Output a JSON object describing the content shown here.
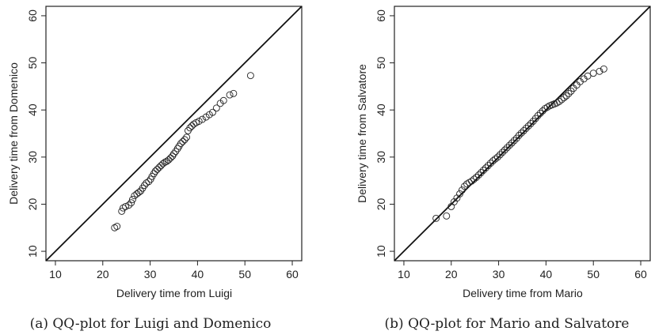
{
  "chart_data": [
    {
      "type": "scatter",
      "caption": "(a) QQ-plot for Luigi and Domenico",
      "xlabel": "Delivery time from Luigi",
      "ylabel": "Delivery time from Domenico",
      "xlim": [
        8,
        62
      ],
      "ylim": [
        8,
        62
      ],
      "xticks": [
        10,
        20,
        30,
        40,
        50,
        60
      ],
      "yticks": [
        10,
        20,
        30,
        40,
        50,
        60
      ],
      "reference_line": "y = x",
      "series": [
        {
          "marker": "open-circle",
          "points": [
            [
              22.5,
              15.0
            ],
            [
              23.0,
              15.3
            ],
            [
              24.0,
              18.5
            ],
            [
              24.3,
              19.2
            ],
            [
              24.8,
              19.5
            ],
            [
              25.5,
              19.8
            ],
            [
              26.0,
              20.3
            ],
            [
              26.3,
              21.0
            ],
            [
              26.7,
              21.8
            ],
            [
              27.2,
              22.2
            ],
            [
              27.6,
              22.5
            ],
            [
              28.0,
              22.8
            ],
            [
              28.4,
              23.4
            ],
            [
              28.8,
              24.0
            ],
            [
              29.2,
              24.5
            ],
            [
              29.7,
              24.8
            ],
            [
              30.1,
              25.3
            ],
            [
              30.4,
              25.9
            ],
            [
              30.8,
              26.5
            ],
            [
              31.1,
              27.0
            ],
            [
              31.5,
              27.4
            ],
            [
              31.9,
              27.8
            ],
            [
              32.3,
              28.2
            ],
            [
              32.7,
              28.6
            ],
            [
              33.1,
              28.9
            ],
            [
              33.5,
              29.1
            ],
            [
              33.9,
              29.4
            ],
            [
              34.3,
              29.8
            ],
            [
              34.7,
              30.2
            ],
            [
              35.0,
              30.7
            ],
            [
              35.4,
              31.2
            ],
            [
              35.8,
              31.8
            ],
            [
              36.1,
              32.3
            ],
            [
              36.5,
              32.9
            ],
            [
              36.9,
              33.3
            ],
            [
              37.3,
              33.7
            ],
            [
              37.7,
              34.2
            ],
            [
              38.0,
              35.6
            ],
            [
              38.4,
              36.2
            ],
            [
              38.8,
              36.6
            ],
            [
              39.2,
              37.0
            ],
            [
              39.7,
              37.3
            ],
            [
              40.3,
              37.6
            ],
            [
              41.0,
              38.0
            ],
            [
              41.8,
              38.5
            ],
            [
              42.5,
              39.0
            ],
            [
              43.2,
              39.5
            ],
            [
              44.0,
              40.4
            ],
            [
              44.8,
              41.4
            ],
            [
              45.5,
              42.0
            ],
            [
              46.8,
              43.2
            ],
            [
              47.6,
              43.5
            ],
            [
              51.2,
              47.3
            ]
          ]
        }
      ]
    },
    {
      "type": "scatter",
      "caption": "(b) QQ-plot for Mario and Salvatore",
      "xlabel": "Delivery time from Mario",
      "ylabel": "Delivery time from Salvatore",
      "xlim": [
        8,
        62
      ],
      "ylim": [
        8,
        62
      ],
      "xticks": [
        10,
        20,
        30,
        40,
        50,
        60
      ],
      "yticks": [
        10,
        20,
        30,
        40,
        50,
        60
      ],
      "reference_line": "y = x",
      "series": [
        {
          "marker": "open-circle",
          "points": [
            [
              16.8,
              17.0
            ],
            [
              19.0,
              17.5
            ],
            [
              20.0,
              19.5
            ],
            [
              20.6,
              20.5
            ],
            [
              21.2,
              21.3
            ],
            [
              21.8,
              22.2
            ],
            [
              22.3,
              23.0
            ],
            [
              22.8,
              23.8
            ],
            [
              23.3,
              24.3
            ],
            [
              23.8,
              24.6
            ],
            [
              24.3,
              24.9
            ],
            [
              24.8,
              25.3
            ],
            [
              25.3,
              25.7
            ],
            [
              25.8,
              26.2
            ],
            [
              26.3,
              26.7
            ],
            [
              26.8,
              27.2
            ],
            [
              27.3,
              27.7
            ],
            [
              27.8,
              28.2
            ],
            [
              28.3,
              28.7
            ],
            [
              28.8,
              29.2
            ],
            [
              29.3,
              29.6
            ],
            [
              29.8,
              30.0
            ],
            [
              30.3,
              30.5
            ],
            [
              30.8,
              31.0
            ],
            [
              31.3,
              31.5
            ],
            [
              31.8,
              32.0
            ],
            [
              32.3,
              32.5
            ],
            [
              32.8,
              33.0
            ],
            [
              33.3,
              33.5
            ],
            [
              33.8,
              34.0
            ],
            [
              34.3,
              34.6
            ],
            [
              34.8,
              35.1
            ],
            [
              35.3,
              35.6
            ],
            [
              35.8,
              36.1
            ],
            [
              36.3,
              36.6
            ],
            [
              36.8,
              37.1
            ],
            [
              37.3,
              37.6
            ],
            [
              37.8,
              38.2
            ],
            [
              38.3,
              38.8
            ],
            [
              38.8,
              39.3
            ],
            [
              39.3,
              39.8
            ],
            [
              39.8,
              40.3
            ],
            [
              40.3,
              40.6
            ],
            [
              40.8,
              40.9
            ],
            [
              41.3,
              41.1
            ],
            [
              41.8,
              41.3
            ],
            [
              42.3,
              41.5
            ],
            [
              42.8,
              41.8
            ],
            [
              43.3,
              42.2
            ],
            [
              43.8,
              42.6
            ],
            [
              44.3,
              43.0
            ],
            [
              44.8,
              43.5
            ],
            [
              45.3,
              44.0
            ],
            [
              45.8,
              44.6
            ],
            [
              46.5,
              45.3
            ],
            [
              47.2,
              46.0
            ],
            [
              48.0,
              46.6
            ],
            [
              48.8,
              47.2
            ],
            [
              50.0,
              47.8
            ],
            [
              51.3,
              48.2
            ],
            [
              52.2,
              48.7
            ]
          ]
        }
      ]
    }
  ]
}
